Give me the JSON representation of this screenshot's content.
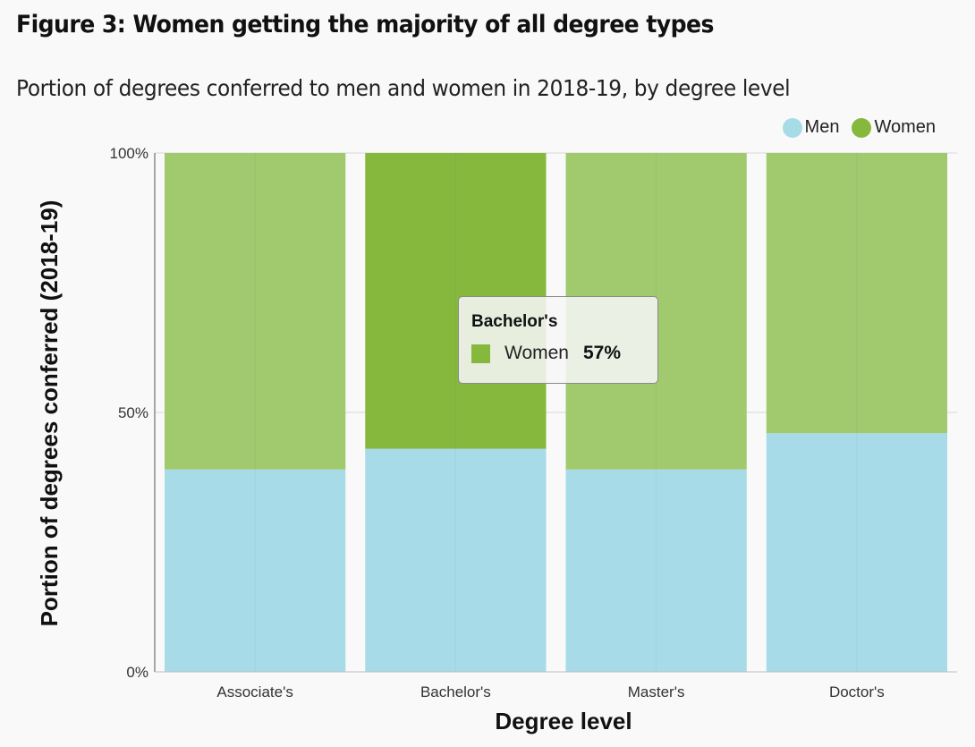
{
  "title": "Figure 3: Women getting the majority of all degree types",
  "subtitle": "Portion of degrees conferred to men and women in 2018-19, by degree level",
  "legend": [
    {
      "name": "Men",
      "color": "#a7dbe8"
    },
    {
      "name": "Women",
      "color": "#a1ca6f"
    }
  ],
  "tooltip": {
    "category": "Bachelor's",
    "series": "Women",
    "value": "57%",
    "color": "#86b83e"
  },
  "chart_data": {
    "type": "bar",
    "stacked": "percent",
    "categories": [
      "Associate's",
      "Bachelor's",
      "Master's",
      "Doctor's"
    ],
    "series": [
      {
        "name": "Men",
        "color": "#a7dbe8",
        "values": [
          39,
          43,
          39,
          46
        ]
      },
      {
        "name": "Women",
        "color": "#a1ca6f",
        "values": [
          61,
          57,
          61,
          54
        ]
      }
    ],
    "highlight": {
      "category": "Bachelor's",
      "series": "Women",
      "color": "#86b83e"
    },
    "xlabel": "Degree level",
    "ylabel": "Portion of degrees conferred (2018-19)",
    "ylim": [
      0,
      100
    ],
    "yticks": [
      "0%",
      "50%",
      "100%"
    ],
    "legend_position": "top-right",
    "grid": true
  }
}
